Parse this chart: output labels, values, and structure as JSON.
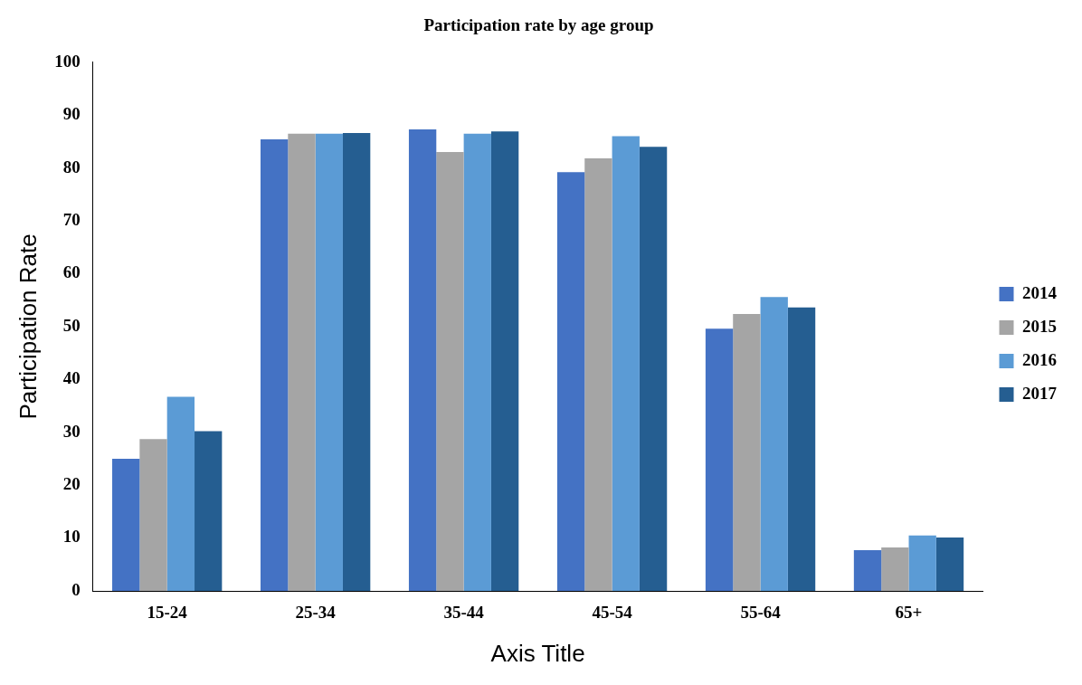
{
  "chart_data": {
    "type": "bar",
    "title": "Participation rate by age group",
    "xlabel": "Axis Title",
    "ylabel": "Participation Rate",
    "categories": [
      "15-24",
      "25-34",
      "35-44",
      "45-54",
      "55-64",
      "65+"
    ],
    "series": [
      {
        "name": "2014",
        "color": "#4472c4",
        "values": [
          25,
          85.4,
          87.3,
          79.2,
          49.6,
          7.7
        ]
      },
      {
        "name": "2015",
        "color": "#a5a5a5",
        "values": [
          28.7,
          86.5,
          83,
          81.8,
          52.4,
          8.2
        ]
      },
      {
        "name": "2016",
        "color": "#5b9bd5",
        "values": [
          36.7,
          86.5,
          86.5,
          86,
          55.6,
          10.5
        ]
      },
      {
        "name": "2017",
        "color": "#255e91",
        "values": [
          30.2,
          86.6,
          86.9,
          84,
          53.6,
          10.1
        ]
      }
    ],
    "ylim": [
      0,
      100
    ],
    "yticks": [
      0,
      10,
      20,
      30,
      40,
      50,
      60,
      70,
      80,
      90,
      100
    ],
    "grid": false,
    "legend": "right"
  }
}
